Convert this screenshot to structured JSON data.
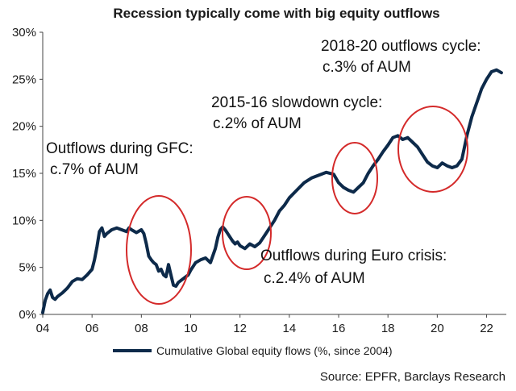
{
  "chart_data": {
    "type": "line",
    "title": "Recession typically come with big equity outflows",
    "xlabel": "",
    "ylabel": "",
    "xlim": [
      2004,
      2022.8
    ],
    "ylim": [
      0,
      30
    ],
    "x_ticks": [
      {
        "value": 2004,
        "label": "04"
      },
      {
        "value": 2006,
        "label": "06"
      },
      {
        "value": 2008,
        "label": "08"
      },
      {
        "value": 2010,
        "label": "10"
      },
      {
        "value": 2012,
        "label": "12"
      },
      {
        "value": 2014,
        "label": "14"
      },
      {
        "value": 2016,
        "label": "16"
      },
      {
        "value": 2018,
        "label": "18"
      },
      {
        "value": 2020,
        "label": "20"
      },
      {
        "value": 2022,
        "label": "22"
      }
    ],
    "y_ticks": [
      {
        "value": 0,
        "label": "0%"
      },
      {
        "value": 5,
        "label": "5%"
      },
      {
        "value": 10,
        "label": "10%"
      },
      {
        "value": 15,
        "label": "15%"
      },
      {
        "value": 20,
        "label": "20%"
      },
      {
        "value": 25,
        "label": "25%"
      },
      {
        "value": 30,
        "label": "30%"
      }
    ],
    "grid": false,
    "legend_position": "bottom",
    "colors": {
      "line": "#0d2a4a",
      "circle": "#d42a2a",
      "axis": "#444444"
    },
    "series": [
      {
        "name": "Cumulative Global equity flows (%, since 2004)",
        "x": [
          2004.0,
          2004.1,
          2004.2,
          2004.3,
          2004.4,
          2004.5,
          2004.6,
          2004.8,
          2005.0,
          2005.2,
          2005.4,
          2005.6,
          2005.8,
          2006.0,
          2006.1,
          2006.2,
          2006.3,
          2006.4,
          2006.5,
          2006.6,
          2006.7,
          2006.8,
          2007.0,
          2007.2,
          2007.4,
          2007.5,
          2007.6,
          2007.8,
          2008.0,
          2008.1,
          2008.2,
          2008.3,
          2008.4,
          2008.5,
          2008.6,
          2008.7,
          2008.8,
          2008.9,
          2009.0,
          2009.1,
          2009.2,
          2009.3,
          2009.4,
          2009.5,
          2009.7,
          2009.9,
          2010.0,
          2010.2,
          2010.4,
          2010.6,
          2010.8,
          2011.0,
          2011.1,
          2011.2,
          2011.3,
          2011.4,
          2011.5,
          2011.6,
          2011.7,
          2011.8,
          2011.9,
          2012.0,
          2012.2,
          2012.4,
          2012.6,
          2012.8,
          2013.0,
          2013.2,
          2013.4,
          2013.6,
          2013.8,
          2014.0,
          2014.3,
          2014.6,
          2014.9,
          2015.2,
          2015.5,
          2015.8,
          2016.0,
          2016.2,
          2016.4,
          2016.6,
          2016.8,
          2017.0,
          2017.2,
          2017.4,
          2017.6,
          2017.8,
          2018.0,
          2018.2,
          2018.4,
          2018.6,
          2018.8,
          2019.0,
          2019.2,
          2019.4,
          2019.6,
          2019.8,
          2020.0,
          2020.2,
          2020.4,
          2020.6,
          2020.8,
          2021.0,
          2021.2,
          2021.4,
          2021.6,
          2021.8,
          2022.0,
          2022.2,
          2022.4,
          2022.6
        ],
        "values": [
          0.2,
          1.5,
          2.2,
          2.6,
          1.8,
          1.6,
          1.9,
          2.3,
          2.8,
          3.5,
          3.8,
          3.7,
          4.2,
          4.8,
          5.8,
          7.2,
          8.8,
          9.2,
          8.3,
          8.6,
          8.8,
          9.0,
          9.2,
          9.0,
          8.8,
          9.2,
          9.0,
          8.7,
          9.0,
          8.6,
          7.5,
          6.2,
          5.8,
          5.5,
          5.3,
          4.6,
          4.8,
          4.2,
          4.0,
          5.3,
          4.2,
          3.1,
          3.0,
          3.4,
          3.8,
          4.2,
          4.7,
          5.5,
          5.8,
          6.0,
          5.5,
          7.0,
          8.2,
          9.0,
          9.3,
          9.0,
          8.6,
          8.2,
          7.8,
          7.5,
          7.7,
          7.3,
          7.0,
          7.5,
          7.2,
          7.6,
          8.4,
          9.2,
          10.0,
          11.0,
          11.6,
          12.4,
          13.2,
          14.0,
          14.5,
          14.8,
          15.1,
          14.9,
          14.0,
          13.5,
          13.2,
          13.0,
          13.5,
          14.0,
          15.0,
          15.8,
          16.5,
          17.3,
          18.0,
          18.8,
          19.0,
          18.6,
          18.8,
          18.3,
          17.8,
          17.0,
          16.2,
          15.8,
          15.6,
          16.1,
          15.8,
          15.6,
          15.8,
          16.5,
          19.0,
          21.0,
          22.5,
          24.0,
          25.0,
          25.8,
          26.0,
          25.7
        ]
      }
    ],
    "annotations": [
      {
        "lines": [
          "2018-20 outflows cycle:",
          "c.3% of AUM"
        ]
      },
      {
        "lines": [
          "2015-16 slowdown cycle:",
          "c.2% of AUM"
        ]
      },
      {
        "lines": [
          "Outflows during GFC:",
          "c.7% of AUM"
        ]
      },
      {
        "lines": [
          "Outflows during Euro crisis:",
          "c.2.4% of AUM"
        ]
      }
    ],
    "highlight_periods": [
      {
        "name": "GFC",
        "x_center": 2008.75,
        "y_center": 6.5
      },
      {
        "name": "Euro crisis",
        "x_center": 2012.2,
        "y_center": 8.2
      },
      {
        "name": "2015-16 slowdown",
        "x_center": 2016.6,
        "y_center": 14.3
      },
      {
        "name": "2018-20",
        "x_center": 2019.9,
        "y_center": 17.8
      }
    ],
    "source": "Source: EPFR, Barclays Research"
  }
}
